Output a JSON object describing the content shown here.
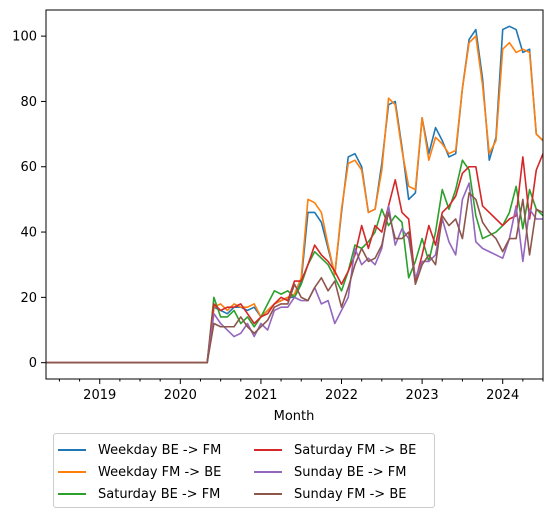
{
  "chart_data": {
    "type": "line",
    "title": "",
    "xlabel": "Month",
    "ylabel": "",
    "x_start": "2018-05",
    "x_end": "2024-07",
    "xlim": [
      "2018-05",
      "2024-07"
    ],
    "ylim": [
      -5,
      108
    ],
    "xticks": [
      "2019",
      "2020",
      "2021",
      "2022",
      "2023",
      "2024"
    ],
    "yticks": [
      0,
      20,
      40,
      60,
      80,
      100
    ],
    "grid": false,
    "legend_position": "bottom, outside",
    "series": [
      {
        "name": "Weekday BE -> FM",
        "color": "#1f77b4",
        "values": [
          0,
          0,
          0,
          0,
          0,
          0,
          0,
          0,
          0,
          0,
          0,
          0,
          0,
          0,
          0,
          0,
          0,
          0,
          0,
          0,
          0,
          0,
          0,
          0,
          0,
          17,
          16,
          15,
          17,
          17,
          16,
          17,
          14,
          16,
          18,
          19,
          20,
          20,
          25,
          46,
          46,
          43,
          35,
          27,
          46,
          63,
          64,
          60,
          46,
          47,
          61,
          79,
          80,
          66,
          50,
          52,
          75,
          64,
          72,
          68,
          63,
          64,
          84,
          99,
          102,
          87,
          62,
          69,
          102,
          103,
          102,
          95,
          96,
          70,
          68
        ]
      },
      {
        "name": "Weekday FM -> BE",
        "color": "#ff7f0e",
        "values": [
          0,
          0,
          0,
          0,
          0,
          0,
          0,
          0,
          0,
          0,
          0,
          0,
          0,
          0,
          0,
          0,
          0,
          0,
          0,
          0,
          0,
          0,
          0,
          0,
          0,
          17,
          18,
          16,
          18,
          17,
          17,
          18,
          14,
          16,
          18,
          19,
          20,
          21,
          26,
          50,
          49,
          46,
          36,
          27,
          47,
          61,
          62,
          59,
          46,
          47,
          59,
          81,
          79,
          65,
          54,
          53,
          75,
          62,
          69,
          67,
          64,
          65,
          84,
          98,
          100,
          85,
          64,
          68,
          96,
          98,
          95,
          96,
          95,
          70,
          68
        ]
      },
      {
        "name": "Saturday BE -> FM",
        "color": "#2ca02c",
        "values": [
          0,
          0,
          0,
          0,
          0,
          0,
          0,
          0,
          0,
          0,
          0,
          0,
          0,
          0,
          0,
          0,
          0,
          0,
          0,
          0,
          0,
          0,
          0,
          0,
          0,
          20,
          14,
          14,
          16,
          12,
          14,
          11,
          14,
          18,
          22,
          21,
          22,
          20,
          24,
          30,
          34,
          32,
          30,
          26,
          22,
          28,
          36,
          35,
          37,
          40,
          47,
          42,
          45,
          43,
          26,
          31,
          38,
          31,
          40,
          53,
          47,
          53,
          62,
          59,
          45,
          38,
          39,
          40,
          42,
          46,
          54,
          41,
          53,
          47,
          45
        ]
      },
      {
        "name": "Saturday FM -> BE",
        "color": "#d62728",
        "values": [
          0,
          0,
          0,
          0,
          0,
          0,
          0,
          0,
          0,
          0,
          0,
          0,
          0,
          0,
          0,
          0,
          0,
          0,
          0,
          0,
          0,
          0,
          0,
          0,
          0,
          18,
          16,
          17,
          17,
          18,
          15,
          12,
          14,
          15,
          18,
          20,
          19,
          25,
          25,
          30,
          36,
          33,
          31,
          28,
          24,
          28,
          33,
          42,
          35,
          42,
          40,
          48,
          56,
          46,
          44,
          25,
          33,
          42,
          36,
          46,
          48,
          51,
          58,
          60,
          60,
          48,
          46,
          44,
          42,
          44,
          45,
          63,
          44,
          59,
          64
        ]
      },
      {
        "name": "Sunday BE -> FM",
        "color": "#9467bd",
        "values": [
          0,
          0,
          0,
          0,
          0,
          0,
          0,
          0,
          0,
          0,
          0,
          0,
          0,
          0,
          0,
          0,
          0,
          0,
          0,
          0,
          0,
          0,
          0,
          0,
          0,
          15,
          12,
          10,
          8,
          9,
          12,
          8,
          12,
          10,
          16,
          17,
          17,
          20,
          19,
          19,
          23,
          18,
          19,
          12,
          16,
          20,
          35,
          30,
          32,
          30,
          35,
          48,
          36,
          41,
          38,
          26,
          31,
          31,
          33,
          44,
          37,
          33,
          50,
          55,
          37,
          35,
          34,
          33,
          32,
          38,
          48,
          31,
          47,
          44,
          44
        ]
      },
      {
        "name": "Sunday FM -> BE",
        "color": "#8c564b",
        "values": [
          0,
          0,
          0,
          0,
          0,
          0,
          0,
          0,
          0,
          0,
          0,
          0,
          0,
          0,
          0,
          0,
          0,
          0,
          0,
          0,
          0,
          0,
          0,
          0,
          0,
          12,
          11,
          11,
          11,
          14,
          11,
          9,
          11,
          13,
          17,
          18,
          18,
          24,
          20,
          19,
          23,
          26,
          22,
          25,
          17,
          23,
          30,
          35,
          31,
          32,
          36,
          46,
          38,
          38,
          40,
          24,
          30,
          33,
          30,
          45,
          42,
          44,
          38,
          52,
          50,
          43,
          40,
          38,
          34,
          38,
          38,
          50,
          33,
          47,
          46
        ]
      }
    ]
  }
}
